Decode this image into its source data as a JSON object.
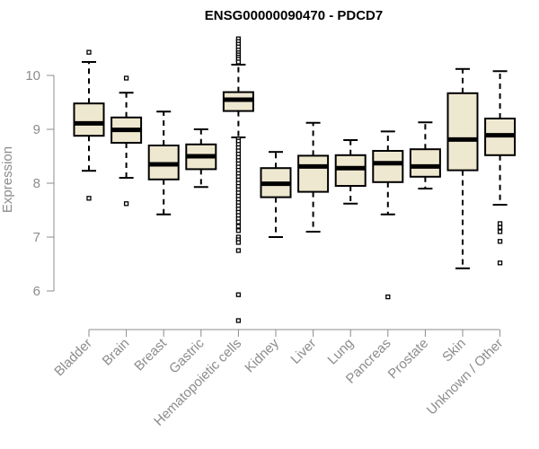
{
  "chart_data": {
    "type": "box",
    "title": "ENSG00000090470 - PDCD7",
    "ylabel": "Expression",
    "xlabel": "",
    "ylim": [
      5.35,
      10.75
    ],
    "yticks": [
      6,
      7,
      8,
      9,
      10
    ],
    "colors": {
      "box_fill": "#efe8d0",
      "stroke": "#000000",
      "axis_text": "#8c8c8c"
    },
    "categories": [
      "Bladder",
      "Brain",
      "Breast",
      "Gastric",
      "Hematopoietic cells",
      "Kidney",
      "Liver",
      "Lung",
      "Pancreas",
      "Prostate",
      "Skin",
      "Unknown / Other"
    ],
    "boxes": [
      {
        "whisker_low": 8.23,
        "q1": 8.88,
        "median": 9.11,
        "q3": 9.48,
        "whisker_high": 10.25,
        "outliers": [
          10.43,
          7.72
        ]
      },
      {
        "whisker_low": 8.1,
        "q1": 8.75,
        "median": 8.99,
        "q3": 9.22,
        "whisker_high": 9.68,
        "outliers": [
          9.95,
          7.62
        ]
      },
      {
        "whisker_low": 7.42,
        "q1": 8.07,
        "median": 8.35,
        "q3": 8.7,
        "whisker_high": 9.33,
        "outliers": []
      },
      {
        "whisker_low": 7.93,
        "q1": 8.26,
        "median": 8.5,
        "q3": 8.72,
        "whisker_high": 9.0,
        "outliers": []
      },
      {
        "whisker_low": 8.85,
        "q1": 9.34,
        "median": 9.55,
        "q3": 9.69,
        "whisker_high": 10.2,
        "outliers": [
          10.68,
          10.63,
          10.58,
          10.53,
          10.47,
          10.42,
          10.38,
          10.34,
          10.3,
          10.25,
          8.82,
          8.78,
          8.72,
          8.66,
          8.6,
          8.54,
          8.48,
          8.42,
          8.36,
          8.3,
          8.24,
          8.18,
          8.12,
          8.06,
          8.0,
          7.94,
          7.88,
          7.82,
          7.76,
          7.7,
          7.64,
          7.58,
          7.52,
          7.46,
          7.4,
          7.34,
          7.28,
          7.2,
          7.12,
          7.0,
          6.95,
          6.9,
          6.75,
          5.93,
          5.45
        ]
      },
      {
        "whisker_low": 7.0,
        "q1": 7.74,
        "median": 7.99,
        "q3": 8.28,
        "whisker_high": 8.58,
        "outliers": []
      },
      {
        "whisker_low": 7.1,
        "q1": 7.84,
        "median": 8.31,
        "q3": 8.51,
        "whisker_high": 9.12,
        "outliers": []
      },
      {
        "whisker_low": 7.62,
        "q1": 7.95,
        "median": 8.28,
        "q3": 8.52,
        "whisker_high": 8.8,
        "outliers": []
      },
      {
        "whisker_low": 7.42,
        "q1": 8.02,
        "median": 8.37,
        "q3": 8.6,
        "whisker_high": 8.96,
        "outliers": [
          5.89
        ]
      },
      {
        "whisker_low": 7.9,
        "q1": 8.12,
        "median": 8.31,
        "q3": 8.63,
        "whisker_high": 9.13,
        "outliers": []
      },
      {
        "whisker_low": 6.42,
        "q1": 8.24,
        "median": 8.81,
        "q3": 9.67,
        "whisker_high": 10.12,
        "outliers": []
      },
      {
        "whisker_low": 7.6,
        "q1": 8.52,
        "median": 8.89,
        "q3": 9.2,
        "whisker_high": 10.08,
        "outliers": [
          7.25,
          7.18,
          7.1,
          6.92,
          6.52
        ]
      }
    ]
  }
}
